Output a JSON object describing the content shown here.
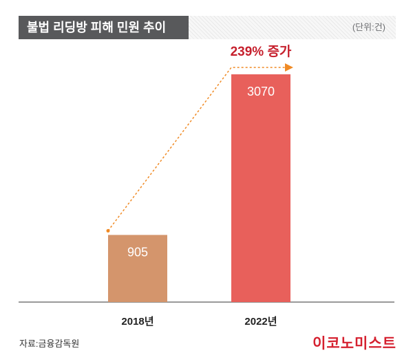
{
  "title": "불법 리딩방 피해 민원 추이",
  "unit": "(단위:건)",
  "source": "자료:금융감독원",
  "logo": "이코노미스트",
  "colors": {
    "bar_2018": "#d4956c",
    "bar_2022": "#e8605b",
    "annotation": "#c6202d",
    "arrow": "#f08a24",
    "title_bg": "#58595b"
  },
  "chart_data": {
    "type": "bar",
    "categories": [
      "2018년",
      "2022년"
    ],
    "values": [
      905,
      3070
    ],
    "ylim": [
      0,
      3200
    ],
    "annotation": "239% 증가",
    "grid": false
  }
}
